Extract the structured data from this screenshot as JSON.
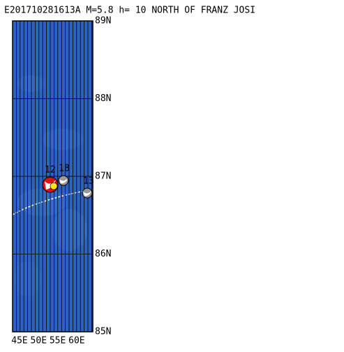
{
  "header": {
    "title": "E201710281613A  M=5.8  h=  10  NORTH OF FRANZ JOSI"
  },
  "map": {
    "lat_labels": [
      "89N",
      "88N",
      "87N",
      "86N",
      "85N"
    ],
    "lon_labels": [
      "45E",
      "50E",
      "55E",
      "60E"
    ],
    "events": [
      {
        "label": "12"
      },
      {
        "label": "18"
      },
      {
        "label": "13"
      }
    ]
  }
}
